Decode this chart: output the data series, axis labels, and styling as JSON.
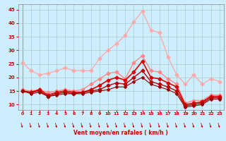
{
  "x": [
    0,
    1,
    2,
    3,
    4,
    5,
    6,
    7,
    8,
    9,
    10,
    11,
    12,
    13,
    14,
    15,
    16,
    17,
    18,
    19,
    20,
    21,
    22,
    23
  ],
  "series": [
    {
      "name": "rafales_max",
      "color": "#ffaaaa",
      "linewidth": 1.0,
      "marker": "D",
      "markersize": 2.5,
      "values": [
        25.5,
        22.5,
        21.0,
        21.5,
        22.5,
        23.5,
        22.5,
        22.5,
        22.5,
        27.0,
        30.0,
        32.5,
        35.5,
        40.5,
        44.5,
        37.5,
        36.5,
        27.5,
        21.0,
        17.5,
        21.0,
        17.5,
        19.5,
        18.5
      ]
    },
    {
      "name": "vent_moyen_max",
      "color": "#ff8888",
      "linewidth": 1.0,
      "marker": "D",
      "markersize": 2.5,
      "values": [
        15.5,
        15.0,
        15.5,
        14.5,
        15.0,
        15.5,
        15.0,
        15.5,
        17.5,
        19.5,
        21.5,
        22.0,
        19.5,
        25.5,
        28.0,
        22.5,
        22.0,
        19.5,
        17.5,
        10.5,
        11.5,
        11.5,
        13.5,
        13.5
      ]
    },
    {
      "name": "vent_moyen",
      "color": "#dd0000",
      "linewidth": 1.2,
      "marker": "D",
      "markersize": 2.5,
      "values": [
        15.0,
        14.5,
        15.5,
        13.5,
        14.5,
        15.0,
        14.5,
        14.5,
        15.5,
        17.0,
        19.0,
        20.0,
        19.0,
        22.0,
        26.0,
        20.0,
        19.5,
        18.0,
        16.5,
        10.0,
        10.5,
        11.0,
        13.0,
        13.0
      ]
    },
    {
      "name": "vent_min",
      "color": "#bb0000",
      "linewidth": 1.0,
      "marker": "D",
      "markersize": 2.5,
      "values": [
        15.0,
        14.5,
        15.0,
        13.0,
        14.0,
        14.5,
        14.0,
        14.5,
        15.0,
        15.5,
        17.0,
        18.0,
        17.5,
        20.0,
        22.5,
        18.5,
        17.5,
        16.5,
        15.0,
        9.5,
        10.0,
        10.5,
        12.5,
        12.5
      ]
    },
    {
      "name": "rafales_min",
      "color": "#990000",
      "linewidth": 0.8,
      "marker": "D",
      "markersize": 2.0,
      "values": [
        15.0,
        14.0,
        14.5,
        13.0,
        13.5,
        14.0,
        14.0,
        14.0,
        14.5,
        15.0,
        15.5,
        16.5,
        16.5,
        18.5,
        20.0,
        17.5,
        16.5,
        15.5,
        14.0,
        9.0,
        9.5,
        10.0,
        12.0,
        12.0
      ]
    }
  ],
  "wind_arrows_x": [
    0,
    1,
    2,
    3,
    4,
    5,
    6,
    7,
    8,
    9,
    10,
    11,
    12,
    13,
    14,
    15,
    16,
    17,
    18,
    19,
    20,
    21,
    22,
    23
  ],
  "arrow_color": "#cc0000",
  "xlabel": "Vent moyen/en rafales ( km/h )",
  "ylim": [
    8,
    47
  ],
  "xlim": [
    -0.5,
    23.5
  ],
  "yticks": [
    10,
    15,
    20,
    25,
    30,
    35,
    40,
    45
  ],
  "xticks": [
    0,
    1,
    2,
    3,
    4,
    5,
    6,
    7,
    8,
    9,
    10,
    11,
    12,
    13,
    14,
    15,
    16,
    17,
    18,
    19,
    20,
    21,
    22,
    23
  ],
  "background_color": "#cceeff",
  "grid_color": "#aacccc",
  "tick_color": "#cc0000",
  "label_color": "#cc0000"
}
